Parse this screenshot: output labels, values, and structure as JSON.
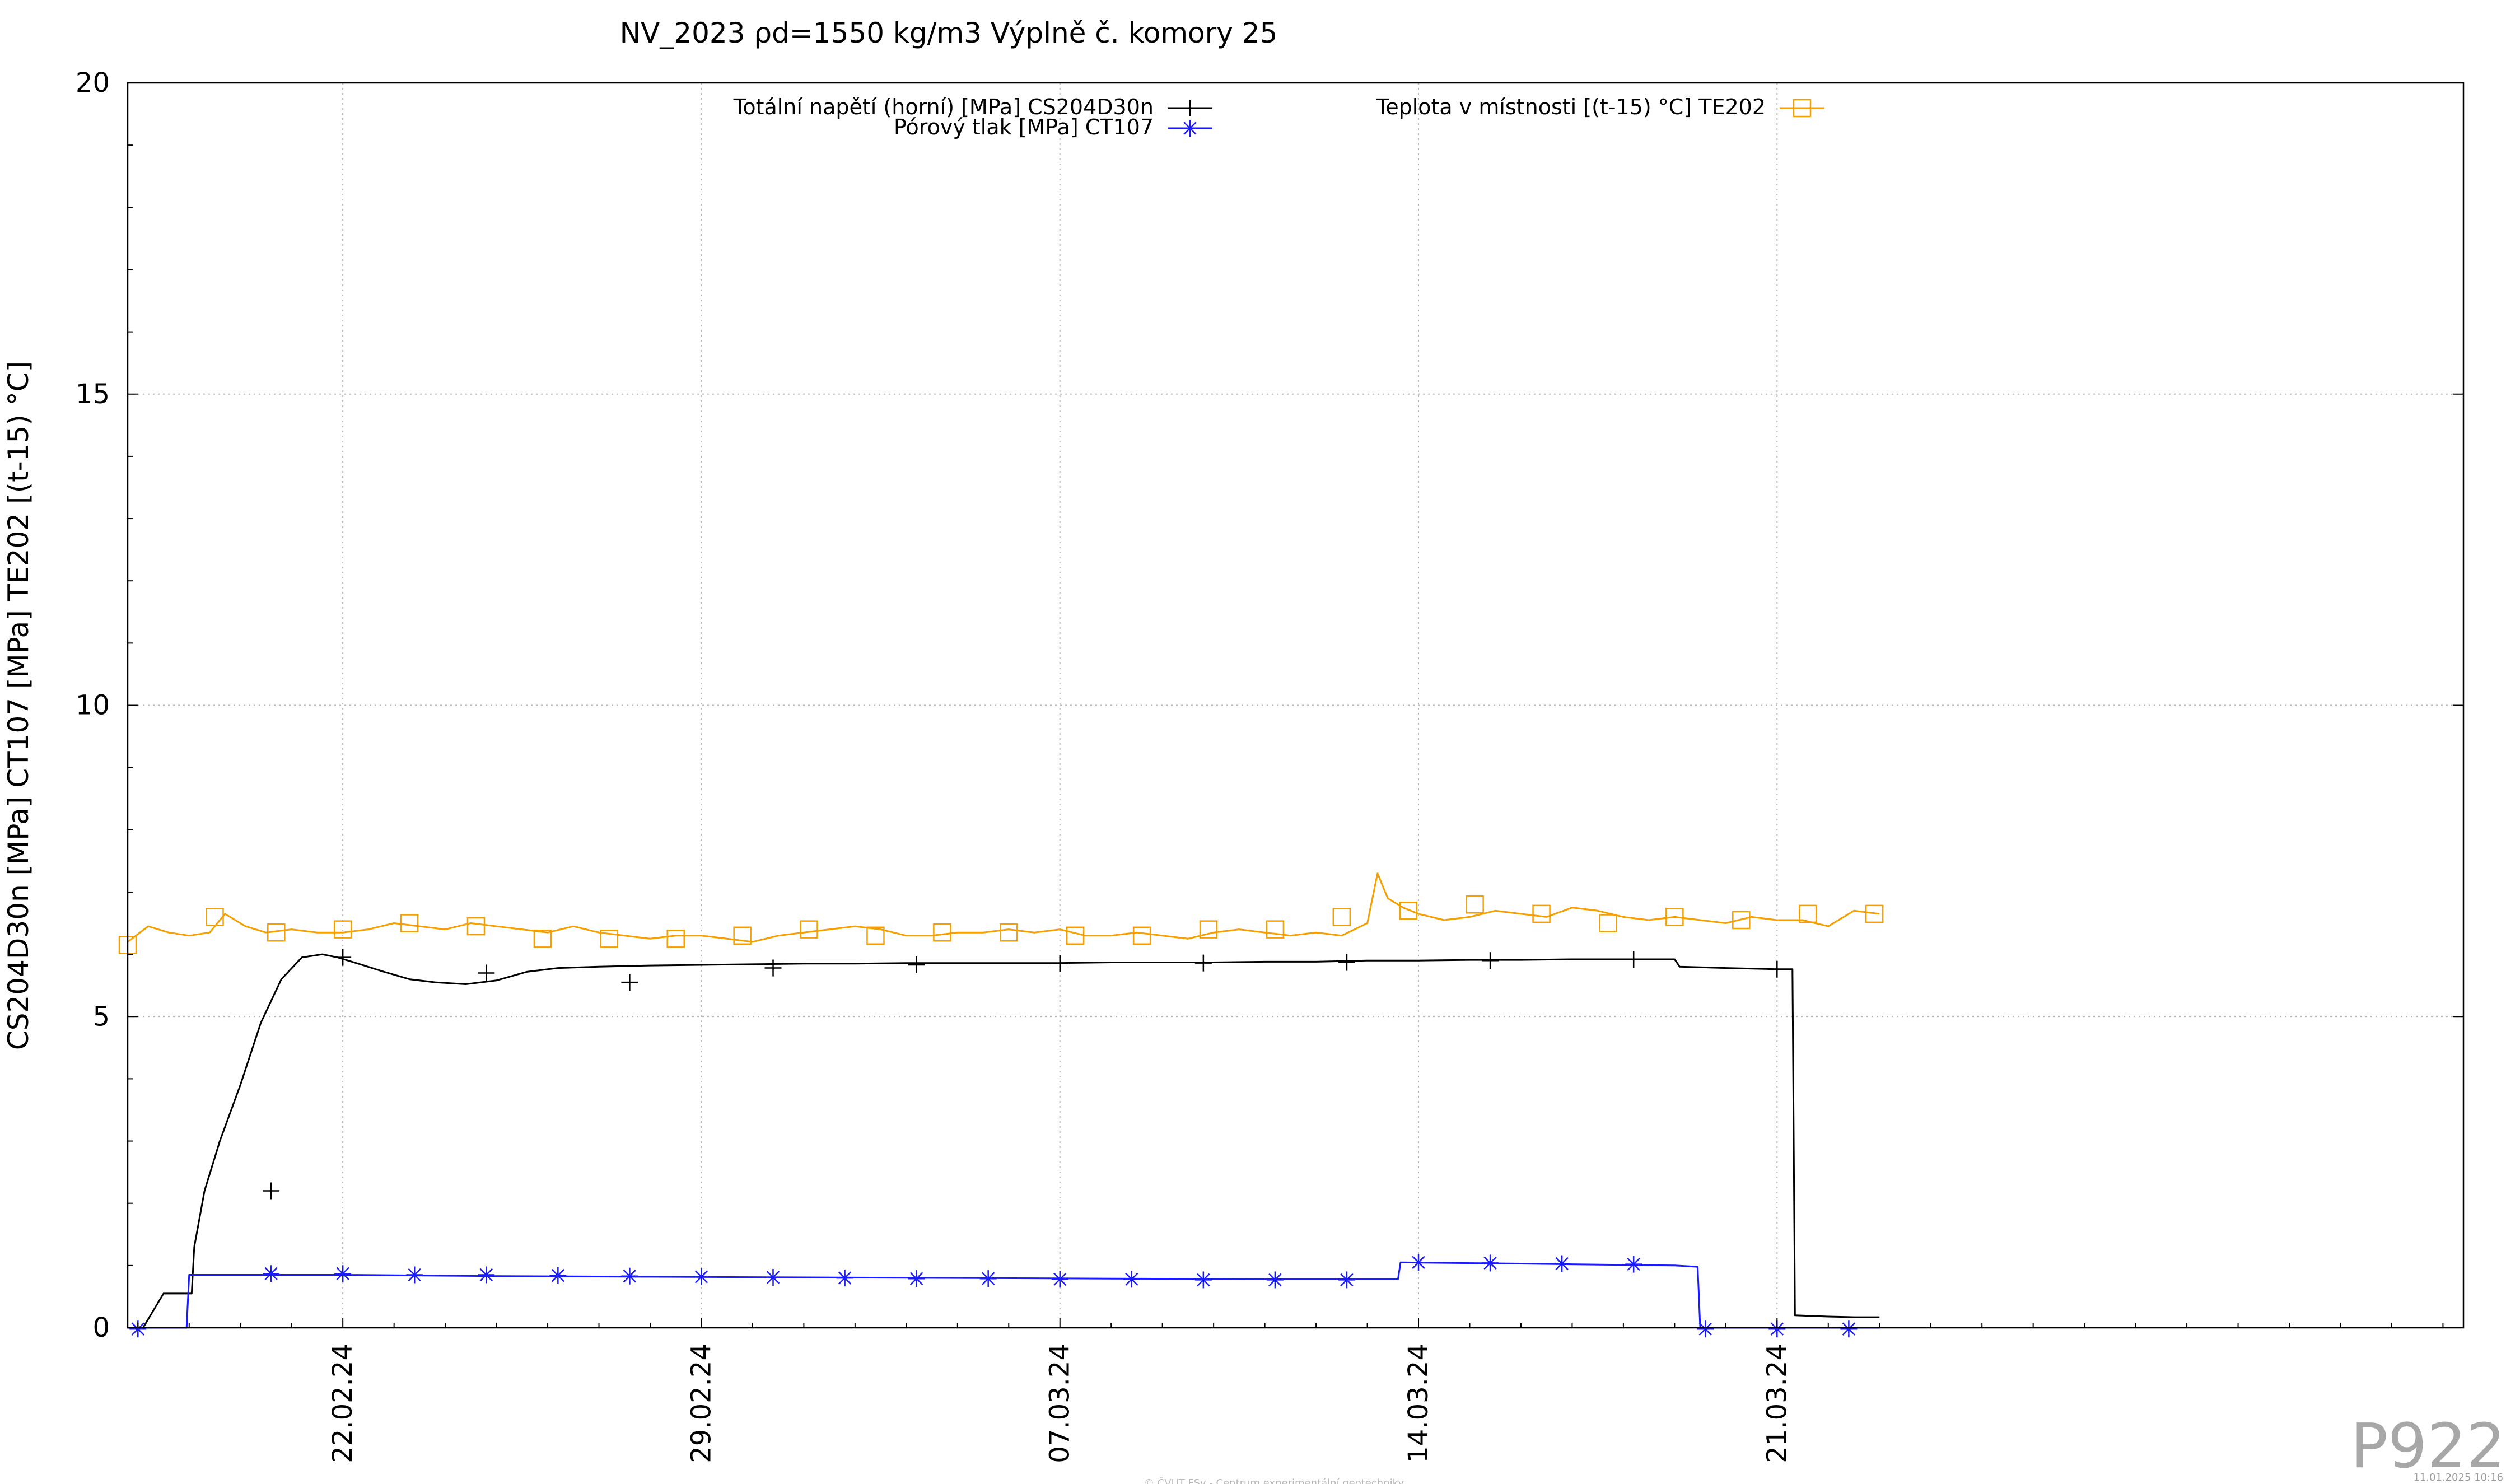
{
  "chart_data": {
    "type": "line",
    "title": "NV_2023 ρd=1550 kg/m3 Výplně č. komory 25",
    "ylabel": "CS204D30n [MPa] CT107 [MPa] TE202 [(t-15) °C]",
    "xlabel": "",
    "ylim": [
      0,
      20
    ],
    "yticks": [
      "0",
      "5",
      "10",
      "15",
      "20"
    ],
    "xlim": [
      -4.2,
      41.4
    ],
    "x_unit": "days relative to 22.02.24",
    "xticks": [
      {
        "label": "22.02.24",
        "value": 0
      },
      {
        "label": "29.02.24",
        "value": 7
      },
      {
        "label": "07.03.24",
        "value": 14
      },
      {
        "label": "14.03.24",
        "value": 21
      },
      {
        "label": "21.03.24",
        "value": 28
      }
    ],
    "grid": true,
    "legend": {
      "placement": "top"
    },
    "series": [
      {
        "name": "Totální napětí (horní) [MPa] CS204D30n",
        "color": "#000000",
        "marker": "plus",
        "x": [
          -4.2,
          -3.9,
          -3.5,
          -3.1,
          -2.95,
          -2.9,
          -2.7,
          -2.4,
          -2.0,
          -1.6,
          -1.2,
          -0.8,
          -0.4,
          -0.1,
          0.3,
          0.8,
          1.3,
          1.8,
          2.4,
          3.0,
          3.6,
          4.2,
          5.0,
          6.0,
          7.0,
          8.0,
          9.0,
          10.0,
          11.0,
          12.0,
          13.0,
          14.0,
          15.0,
          16.0,
          17.0,
          18.0,
          19.0,
          20.0,
          21.0,
          22.0,
          23.0,
          24.0,
          25.0,
          26.0,
          26.1,
          27.0,
          28.0,
          28.3,
          28.35,
          29.0,
          29.5,
          30.0
        ],
        "y": [
          0.0,
          0.0,
          0.55,
          0.55,
          0.55,
          1.3,
          2.2,
          3.0,
          3.9,
          4.9,
          5.6,
          5.95,
          6.0,
          5.95,
          5.85,
          5.72,
          5.6,
          5.55,
          5.52,
          5.58,
          5.72,
          5.78,
          5.8,
          5.82,
          5.83,
          5.84,
          5.85,
          5.85,
          5.86,
          5.86,
          5.86,
          5.86,
          5.87,
          5.87,
          5.87,
          5.88,
          5.88,
          5.9,
          5.9,
          5.91,
          5.91,
          5.92,
          5.92,
          5.92,
          5.8,
          5.78,
          5.76,
          5.76,
          0.2,
          0.18,
          0.17,
          0.17
        ],
        "markers_x": [
          -1.4,
          0.0,
          2.8,
          5.6,
          8.4,
          11.2,
          14.0,
          16.8,
          19.6,
          22.4,
          25.2,
          28.0
        ],
        "markers_y": [
          2.2,
          5.95,
          5.7,
          5.55,
          5.78,
          5.83,
          5.85,
          5.86,
          5.87,
          5.9,
          5.92,
          5.76
        ]
      },
      {
        "name": "Pórový tlak [MPa] CT107",
        "color": "#1a1aff",
        "marker": "star",
        "x": [
          -4.2,
          -3.05,
          -3.0,
          0.0,
          3.0,
          6.0,
          9.0,
          12.0,
          15.0,
          18.0,
          20.6,
          20.65,
          23.0,
          26.0,
          26.45,
          26.5,
          30.0
        ],
        "y": [
          0.0,
          0.0,
          0.85,
          0.85,
          0.83,
          0.82,
          0.81,
          0.8,
          0.79,
          0.78,
          0.78,
          1.05,
          1.03,
          1.0,
          0.98,
          0.0,
          0.0
        ],
        "markers_x": [
          -4.0,
          -1.4,
          0.0,
          1.4,
          2.8,
          4.2,
          5.6,
          7.0,
          8.4,
          9.8,
          11.2,
          12.6,
          14.0,
          15.4,
          16.8,
          18.2,
          19.6,
          21.0,
          22.4,
          23.8,
          25.2,
          26.6,
          28.0,
          29.4
        ],
        "markers_y": [
          -0.02,
          0.87,
          0.87,
          0.85,
          0.85,
          0.84,
          0.83,
          0.82,
          0.81,
          0.8,
          0.79,
          0.79,
          0.78,
          0.78,
          0.77,
          0.77,
          0.77,
          1.05,
          1.04,
          1.03,
          1.02,
          -0.02,
          -0.02,
          -0.02
        ]
      },
      {
        "name": "Teplota v místnosti [(t-15) °C] TE202",
        "color": "#f5a000",
        "marker": "square",
        "x": [
          -4.2,
          -3.8,
          -3.4,
          -3.0,
          -2.6,
          -2.3,
          -1.9,
          -1.5,
          -1.0,
          -0.5,
          0.0,
          0.5,
          1.0,
          1.5,
          2.0,
          2.5,
          3.0,
          3.5,
          4.0,
          4.5,
          5.0,
          5.5,
          6.0,
          6.5,
          7.0,
          7.5,
          8.0,
          8.5,
          9.0,
          9.5,
          10.0,
          10.5,
          11.0,
          11.5,
          12.0,
          12.5,
          13.0,
          13.5,
          14.0,
          14.5,
          15.0,
          15.5,
          16.0,
          16.5,
          17.0,
          17.5,
          18.0,
          18.5,
          19.0,
          19.5,
          20.0,
          20.2,
          20.4,
          20.7,
          21.0,
          21.5,
          22.0,
          22.5,
          23.0,
          23.5,
          24.0,
          24.5,
          25.0,
          25.5,
          26.0,
          26.5,
          27.0,
          27.5,
          28.0,
          28.5,
          29.0,
          29.5,
          30.0
        ],
        "y": [
          6.2,
          6.45,
          6.35,
          6.3,
          6.35,
          6.65,
          6.45,
          6.35,
          6.4,
          6.35,
          6.35,
          6.4,
          6.5,
          6.45,
          6.4,
          6.5,
          6.45,
          6.4,
          6.35,
          6.45,
          6.35,
          6.3,
          6.25,
          6.3,
          6.3,
          6.25,
          6.2,
          6.3,
          6.35,
          6.4,
          6.45,
          6.4,
          6.3,
          6.3,
          6.35,
          6.35,
          6.4,
          6.35,
          6.4,
          6.3,
          6.3,
          6.35,
          6.3,
          6.25,
          6.35,
          6.4,
          6.35,
          6.3,
          6.35,
          6.3,
          6.5,
          7.3,
          6.9,
          6.75,
          6.65,
          6.55,
          6.6,
          6.7,
          6.65,
          6.6,
          6.75,
          6.7,
          6.6,
          6.55,
          6.6,
          6.55,
          6.5,
          6.6,
          6.55,
          6.55,
          6.45,
          6.7,
          6.65
        ],
        "markers_x": [
          -4.2,
          -2.5,
          -1.3,
          0.0,
          1.3,
          2.6,
          3.9,
          5.2,
          6.5,
          7.8,
          9.1,
          10.4,
          11.7,
          13.0,
          14.3,
          15.6,
          16.9,
          18.2,
          19.5,
          20.8,
          22.1,
          23.4,
          24.7,
          26.0,
          27.3,
          28.6,
          29.9
        ],
        "markers_y": [
          6.15,
          6.6,
          6.35,
          6.4,
          6.5,
          6.45,
          6.25,
          6.25,
          6.25,
          6.3,
          6.4,
          6.3,
          6.35,
          6.35,
          6.3,
          6.3,
          6.4,
          6.4,
          6.6,
          6.7,
          6.8,
          6.65,
          6.5,
          6.6,
          6.55,
          6.65,
          6.65
        ]
      }
    ]
  },
  "footer": {
    "left": "© ČVUT FSv - Centrum experimentální geotechniky",
    "right": "11.01.2025 10:16",
    "plot_id": "P922"
  }
}
